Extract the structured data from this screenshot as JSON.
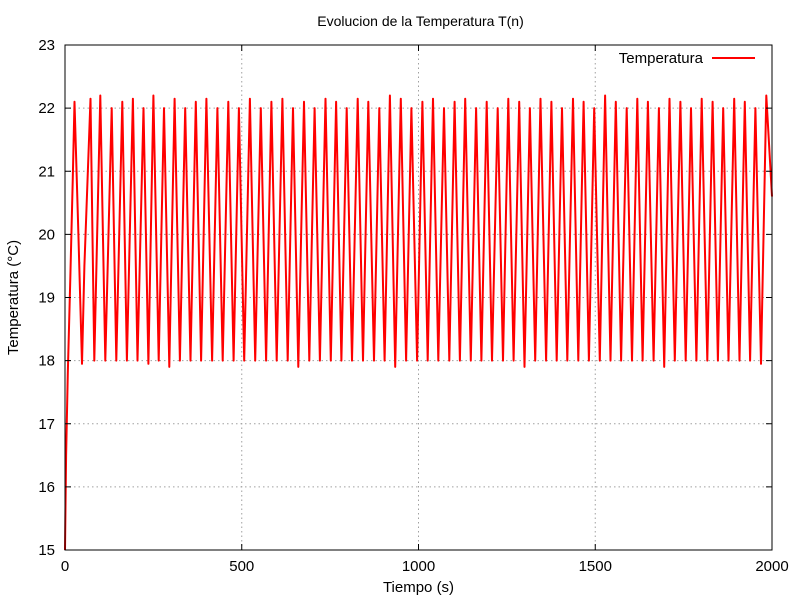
{
  "chart_data": {
    "type": "line",
    "title": "Evolucion de la Temperatura T(n)",
    "xlabel": "Tiempo (s)",
    "ylabel": "Temperatura (°C)",
    "xlim": [
      0,
      2000
    ],
    "ylim": [
      15,
      23
    ],
    "xticks": [
      0,
      500,
      1000,
      1500,
      2000
    ],
    "yticks": [
      15,
      16,
      17,
      18,
      19,
      20,
      21,
      22,
      23
    ],
    "grid": true,
    "legend_position": "top-right",
    "series": [
      {
        "name": "Temperatura",
        "color": "#ff0000",
        "x": [
          0,
          3,
          8,
          15,
          22,
          27,
          38,
          48,
          55,
          72,
          83,
          100,
          114,
          132,
          145,
          162,
          175,
          192,
          205,
          222,
          236,
          250,
          265,
          280,
          295,
          310,
          325,
          340,
          355,
          370,
          385,
          400,
          416,
          431,
          446,
          462,
          477,
          492,
          507,
          523,
          538,
          554,
          569,
          584,
          599,
          615,
          630,
          645,
          660,
          676,
          691,
          706,
          721,
          737,
          752,
          767,
          782,
          797,
          812,
          828,
          843,
          858,
          874,
          889,
          904,
          919,
          934,
          950,
          965,
          980,
          996,
          1011,
          1026,
          1041,
          1056,
          1072,
          1087,
          1102,
          1117,
          1132,
          1148,
          1163,
          1178,
          1193,
          1208,
          1224,
          1239,
          1254,
          1269,
          1285,
          1300,
          1315,
          1330,
          1345,
          1361,
          1376,
          1391,
          1406,
          1421,
          1437,
          1452,
          1467,
          1482,
          1497,
          1513,
          1528,
          1543,
          1558,
          1573,
          1589,
          1604,
          1619,
          1634,
          1649,
          1665,
          1680,
          1695,
          1710,
          1725,
          1741,
          1756,
          1771,
          1786,
          1801,
          1817,
          1832,
          1847,
          1862,
          1877,
          1893,
          1908,
          1923,
          1938,
          1953,
          1969,
          1984,
          2000
        ],
        "y": [
          15.0,
          16.5,
          17.8,
          19.3,
          20.9,
          22.1,
          20.0,
          17.95,
          19.5,
          22.15,
          18.0,
          22.2,
          18.0,
          22.0,
          18.0,
          22.1,
          18.0,
          22.15,
          18.0,
          22.0,
          17.95,
          22.2,
          18.0,
          22.0,
          17.9,
          22.15,
          18.0,
          22.0,
          18.0,
          22.1,
          18.0,
          22.15,
          18.0,
          22.0,
          18.0,
          22.1,
          18.0,
          22.0,
          18.0,
          22.15,
          18.0,
          22.0,
          18.0,
          22.1,
          18.0,
          22.15,
          18.0,
          22.0,
          17.9,
          22.1,
          18.0,
          22.0,
          18.0,
          22.15,
          18.0,
          22.1,
          18.0,
          22.0,
          18.0,
          22.15,
          18.0,
          22.1,
          18.0,
          22.0,
          18.0,
          22.2,
          17.9,
          22.15,
          18.0,
          22.0,
          18.0,
          22.1,
          18.0,
          22.15,
          18.0,
          22.0,
          18.0,
          22.1,
          18.0,
          22.15,
          18.0,
          22.0,
          18.0,
          22.1,
          18.0,
          22.0,
          18.0,
          22.15,
          18.0,
          22.1,
          17.9,
          22.0,
          18.0,
          22.15,
          18.0,
          22.1,
          18.0,
          22.0,
          18.0,
          22.15,
          18.0,
          22.1,
          18.0,
          22.0,
          18.0,
          22.2,
          18.0,
          22.1,
          18.0,
          22.0,
          18.0,
          22.15,
          18.0,
          22.1,
          18.0,
          22.0,
          17.9,
          22.15,
          18.0,
          22.1,
          18.0,
          22.0,
          18.0,
          22.15,
          18.0,
          22.1,
          18.0,
          22.0,
          18.0,
          22.15,
          18.0,
          22.1,
          18.0,
          22.0,
          17.95,
          22.2,
          20.6
        ]
      }
    ]
  }
}
